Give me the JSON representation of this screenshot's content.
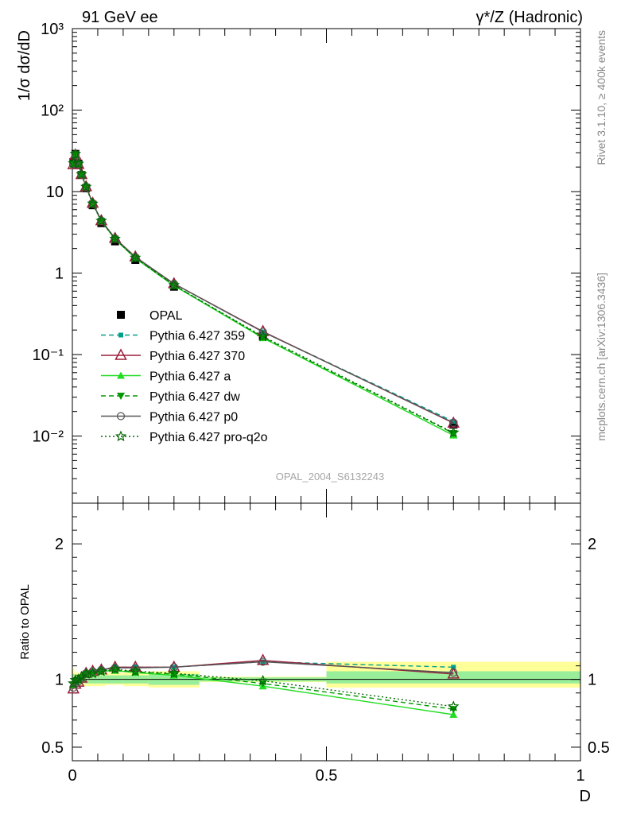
{
  "header": {
    "left_title": "91 GeV ee",
    "right_title": "γ*/Z (Hadronic)"
  },
  "side_labels": {
    "rivet": "Rivet 3.1.10, ≥ 400k events",
    "mcplots": "mcplots.cern.ch [arXiv:1306.3436]"
  },
  "watermark": "OPAL_2004_S6132243",
  "chart_data": [
    {
      "type": "line",
      "panel": "main",
      "yscale": "log",
      "ylabel": "1/σ dσ/dD",
      "ylim": [
        0.0015,
        1000
      ],
      "xlim": [
        0,
        1
      ],
      "ytick_labels": [
        "10⁻²",
        "10⁻¹",
        "1",
        "10",
        "10²",
        "10³"
      ],
      "legend_position": "middle-left",
      "x": [
        0.002,
        0.006,
        0.012,
        0.018,
        0.027,
        0.04,
        0.057,
        0.084,
        0.124,
        0.2,
        0.375,
        0.75
      ],
      "series": [
        {
          "name": "OPAL",
          "style": "data",
          "color": "#000000",
          "marker": "square-filled",
          "values": [
            23,
            29,
            22,
            16,
            11,
            6.8,
            4.1,
            2.45,
            1.45,
            0.68,
            0.168,
            0.0138
          ]
        },
        {
          "name": "Pythia 6.427 359",
          "style": "dashed",
          "color": "#00a08a",
          "marker": "square-small",
          "values": [
            21.9,
            28.4,
            21.8,
            16.2,
            11.5,
            7.2,
            4.4,
            2.67,
            1.58,
            0.74,
            0.19,
            0.0151
          ]
        },
        {
          "name": "Pythia 6.427 370",
          "style": "solid",
          "color": "#9c1e3c",
          "marker": "triangle-open",
          "values": [
            21.4,
            28,
            21.6,
            16.2,
            11.5,
            7.2,
            4.4,
            2.67,
            1.58,
            0.74,
            0.192,
            0.0144
          ]
        },
        {
          "name": "Pythia 6.427 a",
          "style": "solid",
          "color": "#22dd22",
          "marker": "triangle-filled",
          "values": [
            22.1,
            28.6,
            22,
            16.3,
            11.4,
            7.1,
            4.35,
            2.6,
            1.52,
            0.7,
            0.16,
            0.0102
          ]
        },
        {
          "name": "Pythia 6.427 dw",
          "style": "dashed",
          "color": "#009900",
          "marker": "triangle-down-filled",
          "values": [
            22.1,
            28.6,
            21.9,
            16.2,
            11.4,
            7.1,
            4.35,
            2.62,
            1.53,
            0.71,
            0.163,
            0.0108
          ]
        },
        {
          "name": "Pythia 6.427 p0",
          "style": "solid",
          "color": "#555555",
          "marker": "circle-open",
          "values": [
            21.6,
            28.1,
            21.7,
            16.2,
            11.5,
            7.2,
            4.4,
            2.66,
            1.57,
            0.74,
            0.19,
            0.0146
          ]
        },
        {
          "name": "Pythia 6.427 pro-q2o",
          "style": "dotted",
          "color": "#006600",
          "marker": "star-open",
          "values": [
            22.3,
            28.9,
            22,
            16.3,
            11.4,
            7.1,
            4.37,
            2.63,
            1.54,
            0.71,
            0.167,
            0.011
          ]
        }
      ]
    },
    {
      "type": "line",
      "panel": "ratio",
      "ylabel": "Ratio to OPAL",
      "xlabel": "D",
      "ylim": [
        0.4,
        2.3
      ],
      "xlim": [
        0,
        1
      ],
      "ytick_labels": [
        "0.5",
        "1",
        "2"
      ],
      "xtick_labels": [
        "0",
        "0.5",
        "1"
      ],
      "x": [
        0.002,
        0.006,
        0.012,
        0.018,
        0.027,
        0.04,
        0.057,
        0.084,
        0.124,
        0.2,
        0.375,
        0.75
      ],
      "uncertainty_bins": {
        "edges": [
          0,
          0.004,
          0.008,
          0.015,
          0.022,
          0.032,
          0.05,
          0.065,
          0.1,
          0.15,
          0.25,
          0.5,
          1.0
        ],
        "inner_band": [
          [
            0.96,
            1.04
          ],
          [
            0.97,
            1.03
          ],
          [
            0.97,
            1.03
          ],
          [
            0.97,
            1.03
          ],
          [
            0.97,
            1.03
          ],
          [
            0.97,
            1.03
          ],
          [
            0.97,
            1.03
          ],
          [
            0.97,
            1.03
          ],
          [
            0.97,
            1.03
          ],
          [
            0.96,
            1.04
          ],
          [
            0.985,
            1.015
          ],
          [
            0.97,
            1.06
          ]
        ],
        "outer_band": [
          [
            0.93,
            1.08
          ],
          [
            0.95,
            1.05
          ],
          [
            0.95,
            1.05
          ],
          [
            0.95,
            1.05
          ],
          [
            0.95,
            1.05
          ],
          [
            0.95,
            1.05
          ],
          [
            0.95,
            1.05
          ],
          [
            0.96,
            1.05
          ],
          [
            0.95,
            1.05
          ],
          [
            0.94,
            1.06
          ],
          [
            0.98,
            1.02
          ],
          [
            0.94,
            1.13
          ]
        ]
      },
      "series": [
        {
          "name": "Pythia 6.427 359",
          "style": "dashed",
          "color": "#00a08a",
          "marker": "square-small",
          "values": [
            0.95,
            0.98,
            0.99,
            1.01,
            1.05,
            1.06,
            1.07,
            1.09,
            1.09,
            1.09,
            1.13,
            1.09
          ]
        },
        {
          "name": "Pythia 6.427 370",
          "style": "solid",
          "color": "#9c1e3c",
          "marker": "triangle-open",
          "values": [
            0.93,
            0.965,
            0.98,
            1.01,
            1.045,
            1.06,
            1.07,
            1.09,
            1.09,
            1.09,
            1.14,
            1.04
          ]
        },
        {
          "name": "Pythia 6.427 a",
          "style": "solid",
          "color": "#22dd22",
          "marker": "triangle-filled",
          "values": [
            0.96,
            0.985,
            1.0,
            1.02,
            1.04,
            1.045,
            1.06,
            1.065,
            1.05,
            1.03,
            0.95,
            0.74
          ]
        },
        {
          "name": "Pythia 6.427 dw",
          "style": "dashed",
          "color": "#009900",
          "marker": "triangle-down-filled",
          "values": [
            0.96,
            0.985,
            0.995,
            1.01,
            1.04,
            1.045,
            1.06,
            1.07,
            1.055,
            1.04,
            0.97,
            0.78
          ]
        },
        {
          "name": "Pythia 6.427 p0",
          "style": "solid",
          "color": "#555555",
          "marker": "circle-open",
          "values": [
            0.94,
            0.97,
            0.985,
            1.01,
            1.045,
            1.06,
            1.07,
            1.085,
            1.085,
            1.09,
            1.13,
            1.05
          ]
        },
        {
          "name": "Pythia 6.427 pro-q2o",
          "style": "dotted",
          "color": "#006600",
          "marker": "star-open",
          "values": [
            0.97,
            0.995,
            1.0,
            1.02,
            1.04,
            1.045,
            1.06,
            1.075,
            1.06,
            1.045,
            0.99,
            0.8
          ]
        }
      ]
    }
  ]
}
